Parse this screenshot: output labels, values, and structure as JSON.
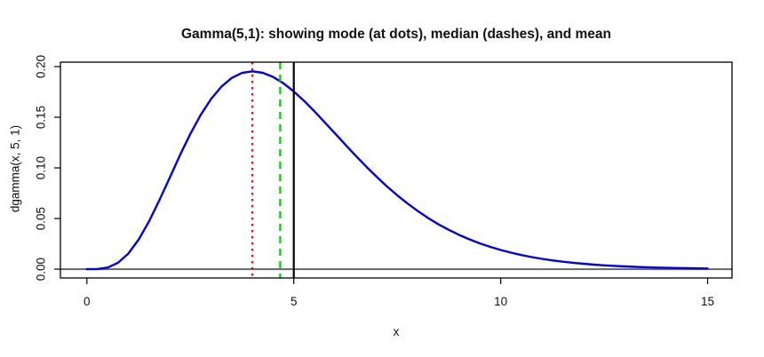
{
  "figure": {
    "title": "Gamma(5,1): showing mode (at dots), median (dashes), and mean"
  },
  "chart_data": {
    "type": "line",
    "title": "Gamma(5,1): showing mode (at dots), median (dashes), and mean",
    "xlabel": "x",
    "ylabel": "dgamma(x, 5, 1)",
    "grid": false,
    "legend": "none",
    "xlim": [
      -0.64,
      15.59
    ],
    "ylim": [
      -0.0087,
      0.2044
    ],
    "x_ticks": [
      0,
      5,
      10,
      15
    ],
    "x_tick_labels": [
      "0",
      "5",
      "10",
      "15"
    ],
    "y_ticks": [
      0.0,
      0.05,
      0.1,
      0.15,
      0.2
    ],
    "y_tick_labels": [
      "0.00",
      "0.05",
      "0.10",
      "0.15",
      "0.20"
    ],
    "series": [
      {
        "name": "Gamma(5,1) density curve",
        "color": "#0000ee",
        "line_width": 2.4,
        "x_start": 0,
        "x_step": 0.25,
        "values": [
          0.0,
          0.00013,
          0.00158,
          0.00623,
          0.01533,
          0.02914,
          0.04707,
          0.06791,
          0.09022,
          0.11255,
          0.1336,
          0.15234,
          0.16803,
          0.18023,
          0.18881,
          0.19379,
          0.19537,
          0.1939,
          0.1898,
          0.18351,
          0.17547,
          0.1661,
          0.15584,
          0.14496,
          0.13385,
          0.12274,
          0.11182,
          0.1013,
          0.09123,
          0.08175,
          0.07292,
          0.06475,
          0.05725,
          0.05043,
          0.04422,
          0.0387,
          0.03374,
          0.02932,
          0.0254,
          0.02195,
          0.01892,
          0.01626,
          0.01394,
          0.01193,
          0.01019,
          0.00868,
          0.00739,
          0.00627,
          0.00531,
          0.00449,
          0.00379,
          0.0032,
          0.00269,
          0.00226,
          0.0019,
          0.00159,
          0.00133,
          0.00111,
          0.00093,
          0.00077,
          0.00065
        ]
      }
    ],
    "vlines": [
      {
        "name": "mode-line",
        "x": 4.0,
        "color": "#ff0000",
        "style": "dotted",
        "width": 2.2
      },
      {
        "name": "median-line",
        "x": 4.6709,
        "color": "#00cc00",
        "style": "dashed",
        "width": 2.2
      },
      {
        "name": "mean-line",
        "x": 5.0,
        "color": "#000000",
        "style": "solid",
        "width": 2.2
      }
    ],
    "hlines": [
      {
        "name": "zero-baseline",
        "y": 0.0,
        "color": "#666666",
        "style": "solid",
        "width": 2
      }
    ],
    "annotations": {
      "mode_value": 4.0,
      "median_value": 4.6709,
      "mean_value": 5.0
    },
    "colors": {
      "background": "#ffffff",
      "frame": "#000000",
      "curve": "#0000ee",
      "mode": "#ff0000",
      "median": "#00cc00",
      "mean": "#000000",
      "baseline": "#666666"
    }
  }
}
